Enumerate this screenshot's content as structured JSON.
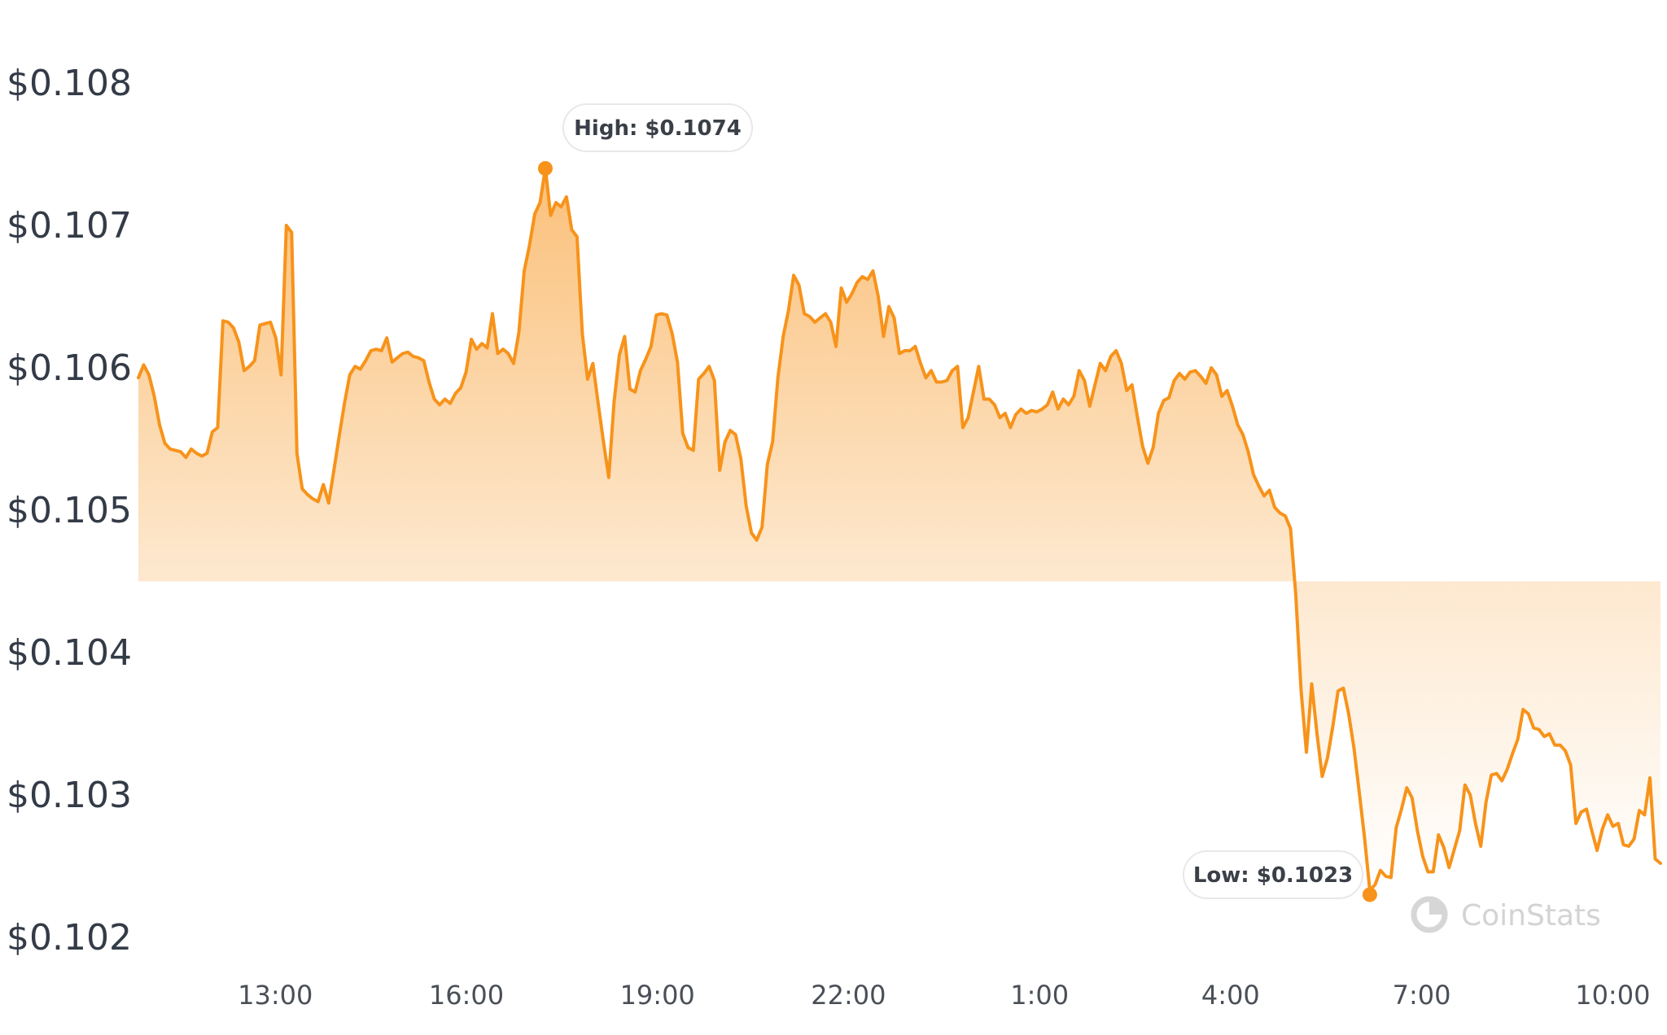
{
  "chart_data": {
    "type": "area",
    "y_ticks": [
      "$0.108",
      "$0.107",
      "$0.106",
      "$0.105",
      "$0.104",
      "$0.103",
      "$0.102"
    ],
    "y_tick_values": [
      0.108,
      0.107,
      0.106,
      0.105,
      0.104,
      0.103,
      0.102
    ],
    "ylim": [
      0.102,
      0.108
    ],
    "x_ticks": [
      "13:00",
      "16:00",
      "19:00",
      "22:00",
      "1:00",
      "4:00",
      "7:00",
      "10:00"
    ],
    "x_tick_hours": [
      13,
      16,
      19,
      22,
      25,
      28,
      31,
      34
    ],
    "x_start_hour": 10.85,
    "x_end_hour": 34.75,
    "grid": false,
    "line_color": "#f7931a",
    "fill_color": "#f7931a",
    "high": {
      "label": "High: $0.1074",
      "value": 0.1074
    },
    "low": {
      "label": "Low: $0.1023",
      "value": 0.1023
    },
    "series": [
      {
        "values": [
          0.10593,
          0.10602,
          0.10595,
          0.1058,
          0.1056,
          0.10547,
          0.10543,
          0.10542,
          0.10541,
          0.10537,
          0.10543,
          0.1054,
          0.10538,
          0.1054,
          0.10555,
          0.10558,
          0.10633,
          0.10632,
          0.10628,
          0.10618,
          0.10598,
          0.10601,
          0.10605,
          0.1063,
          0.10631,
          0.10632,
          0.10621,
          0.10595,
          0.107,
          0.10695,
          0.1054,
          0.10515,
          0.10511,
          0.10508,
          0.10506,
          0.10518,
          0.10505,
          0.10528,
          0.10552,
          0.10575,
          0.10595,
          0.10601,
          0.10599,
          0.10605,
          0.10612,
          0.10613,
          0.10612,
          0.10621,
          0.10604,
          0.10607,
          0.1061,
          0.10611,
          0.10608,
          0.10607,
          0.10605,
          0.1059,
          0.10578,
          0.10574,
          0.10578,
          0.10575,
          0.10582,
          0.10586,
          0.10597,
          0.1062,
          0.10613,
          0.10617,
          0.10614,
          0.10638,
          0.1061,
          0.10613,
          0.1061,
          0.10603,
          0.10625,
          0.10668,
          0.10686,
          0.10708,
          0.10716,
          0.1074,
          0.10707,
          0.10716,
          0.10713,
          0.1072,
          0.10697,
          0.10692,
          0.10624,
          0.10592,
          0.10603,
          0.10575,
          0.10548,
          0.10523,
          0.10576,
          0.10609,
          0.10622,
          0.10585,
          0.10583,
          0.10598,
          0.10606,
          0.10615,
          0.10637,
          0.10638,
          0.10637,
          0.10624,
          0.10604,
          0.10554,
          0.10544,
          0.10542,
          0.10592,
          0.10596,
          0.10601,
          0.10591,
          0.10528,
          0.10548,
          0.10556,
          0.10553,
          0.10536,
          0.10503,
          0.10484,
          0.10479,
          0.10488,
          0.10532,
          0.10548,
          0.10593,
          0.10622,
          0.1064,
          0.10665,
          0.10658,
          0.10638,
          0.10636,
          0.10632,
          0.10635,
          0.10638,
          0.10632,
          0.10615,
          0.10656,
          0.10646,
          0.10652,
          0.1066,
          0.10664,
          0.10662,
          0.10668,
          0.1065,
          0.10622,
          0.10643,
          0.10635,
          0.1061,
          0.10612,
          0.10612,
          0.10615,
          0.10603,
          0.10593,
          0.10598,
          0.1059,
          0.1059,
          0.10591,
          0.10598,
          0.10601,
          0.10558,
          0.10565,
          0.10583,
          0.10601,
          0.10578,
          0.10578,
          0.10574,
          0.10565,
          0.10568,
          0.10558,
          0.10567,
          0.10571,
          0.10568,
          0.1057,
          0.10569,
          0.10571,
          0.10574,
          0.10583,
          0.10571,
          0.10578,
          0.10574,
          0.1058,
          0.10598,
          0.10591,
          0.10573,
          0.10588,
          0.10603,
          0.10598,
          0.10608,
          0.10612,
          0.10603,
          0.10584,
          0.10588,
          0.10566,
          0.10545,
          0.10533,
          0.10544,
          0.10568,
          0.10577,
          0.10579,
          0.10591,
          0.10596,
          0.10592,
          0.10597,
          0.10598,
          0.10594,
          0.10589,
          0.106,
          0.10595,
          0.1058,
          0.10584,
          0.10573,
          0.1056,
          0.10553,
          0.10541,
          0.10525,
          0.10517,
          0.1051,
          0.10514,
          0.10502,
          0.10498,
          0.10496,
          0.10487,
          0.1044,
          0.10373,
          0.1033,
          0.10378,
          0.10343,
          0.10313,
          0.10326,
          0.10348,
          0.10373,
          0.10375,
          0.10357,
          0.10333,
          0.10302,
          0.1027,
          0.10233,
          0.10237,
          0.10247,
          0.10243,
          0.10242,
          0.10277,
          0.1029,
          0.10305,
          0.10298,
          0.10275,
          0.10257,
          0.10246,
          0.10246,
          0.10272,
          0.10263,
          0.10249,
          0.10262,
          0.10275,
          0.10307,
          0.103,
          0.1028,
          0.10264,
          0.10295,
          0.10314,
          0.10315,
          0.1031,
          0.10318,
          0.10329,
          0.10339,
          0.1036,
          0.10357,
          0.10347,
          0.10346,
          0.10341,
          0.10343,
          0.10335,
          0.10335,
          0.10331,
          0.10321,
          0.1028,
          0.10288,
          0.1029,
          0.10275,
          0.10261,
          0.10276,
          0.10286,
          0.10278,
          0.1028,
          0.10265,
          0.10264,
          0.10269,
          0.10289,
          0.10286,
          0.10312,
          0.10255,
          0.10252
        ]
      }
    ]
  },
  "watermark": {
    "text": "CoinStats",
    "icon": "coinstats-logo-icon"
  }
}
